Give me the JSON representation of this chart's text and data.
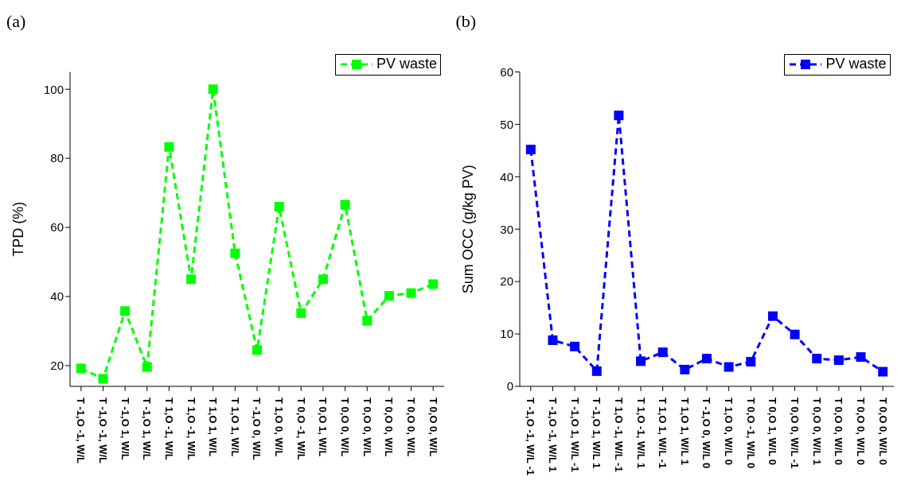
{
  "chart_data": [
    {
      "type": "line",
      "title": "(a)",
      "ylabel": "TPD (%)",
      "categories": [
        "T -1,O -1, W/L",
        "T -1,O -1, W/L",
        "T -1,O 1, W/L",
        "T -1,O 1, W/L",
        "T 1,O -1, W/L",
        "T 1,O -1, W/L",
        "T 1,O 1, W/L",
        "T 1,O 1, W/L",
        "T -1,O 0, W/L",
        "T 1,O 0, W/L",
        "T 0,O -1, W/L",
        "T 0,O 1, W/L",
        "T 0,O 0, W/L",
        "T 0,O 0, W/L",
        "T 0,O 0, W/L",
        "T 0,O 0, W/L",
        "T 0,O 0, W/L"
      ],
      "series": [
        {
          "name": "PV waste",
          "color": "#00ff00",
          "values": [
            19.2,
            16.2,
            35.8,
            19.6,
            83.3,
            45,
            100,
            52.5,
            24.5,
            66,
            35.2,
            45,
            66.6,
            33,
            40.2,
            41,
            43.6
          ]
        }
      ],
      "ylim": [
        14,
        105
      ],
      "yticks": [
        20,
        40,
        60,
        80,
        100
      ],
      "legend": "top right",
      "marker": "square",
      "line_style": "dashed"
    },
    {
      "type": "line",
      "title": "(b)",
      "ylabel": "Sum OCC (g/kg PV)",
      "categories": [
        "T -1,O -1, W/L -1",
        "T -1,O -1, W/L 1",
        "T -1,O 1, W/L -1",
        "T -1,O 1, W/L 1",
        "T 1,O -1, W/L -1",
        "T 1,O -1, W/L 1",
        "T 1,O 1, W/L -1",
        "T 1,O 1, W/L 1",
        "T -1,O 0, W/L 0",
        "T 1,O 0, W/L 0",
        "T 0,O -1, W/L 0",
        "T 0,O 1, W/L 0",
        "T 0,O 0, W/L -1",
        "T 0,O 0, W/L 1",
        "T 0,O 0, W/L 0",
        "T 0,O 0, W/L 0",
        "T 0,O 0, W/L 0"
      ],
      "series": [
        {
          "name": "PV waste",
          "color": "#0000ff",
          "values": [
            45.2,
            8.8,
            7.6,
            2.9,
            51.7,
            4.8,
            6.5,
            3.2,
            5.3,
            3.7,
            4.7,
            13.4,
            9.9,
            5.3,
            5.0,
            5.6,
            2.8
          ]
        }
      ],
      "ylim": [
        0,
        60
      ],
      "yticks": [
        0,
        10,
        20,
        30,
        40,
        50,
        60
      ],
      "legend": "top right",
      "marker": "square",
      "line_style": "dashed"
    }
  ]
}
